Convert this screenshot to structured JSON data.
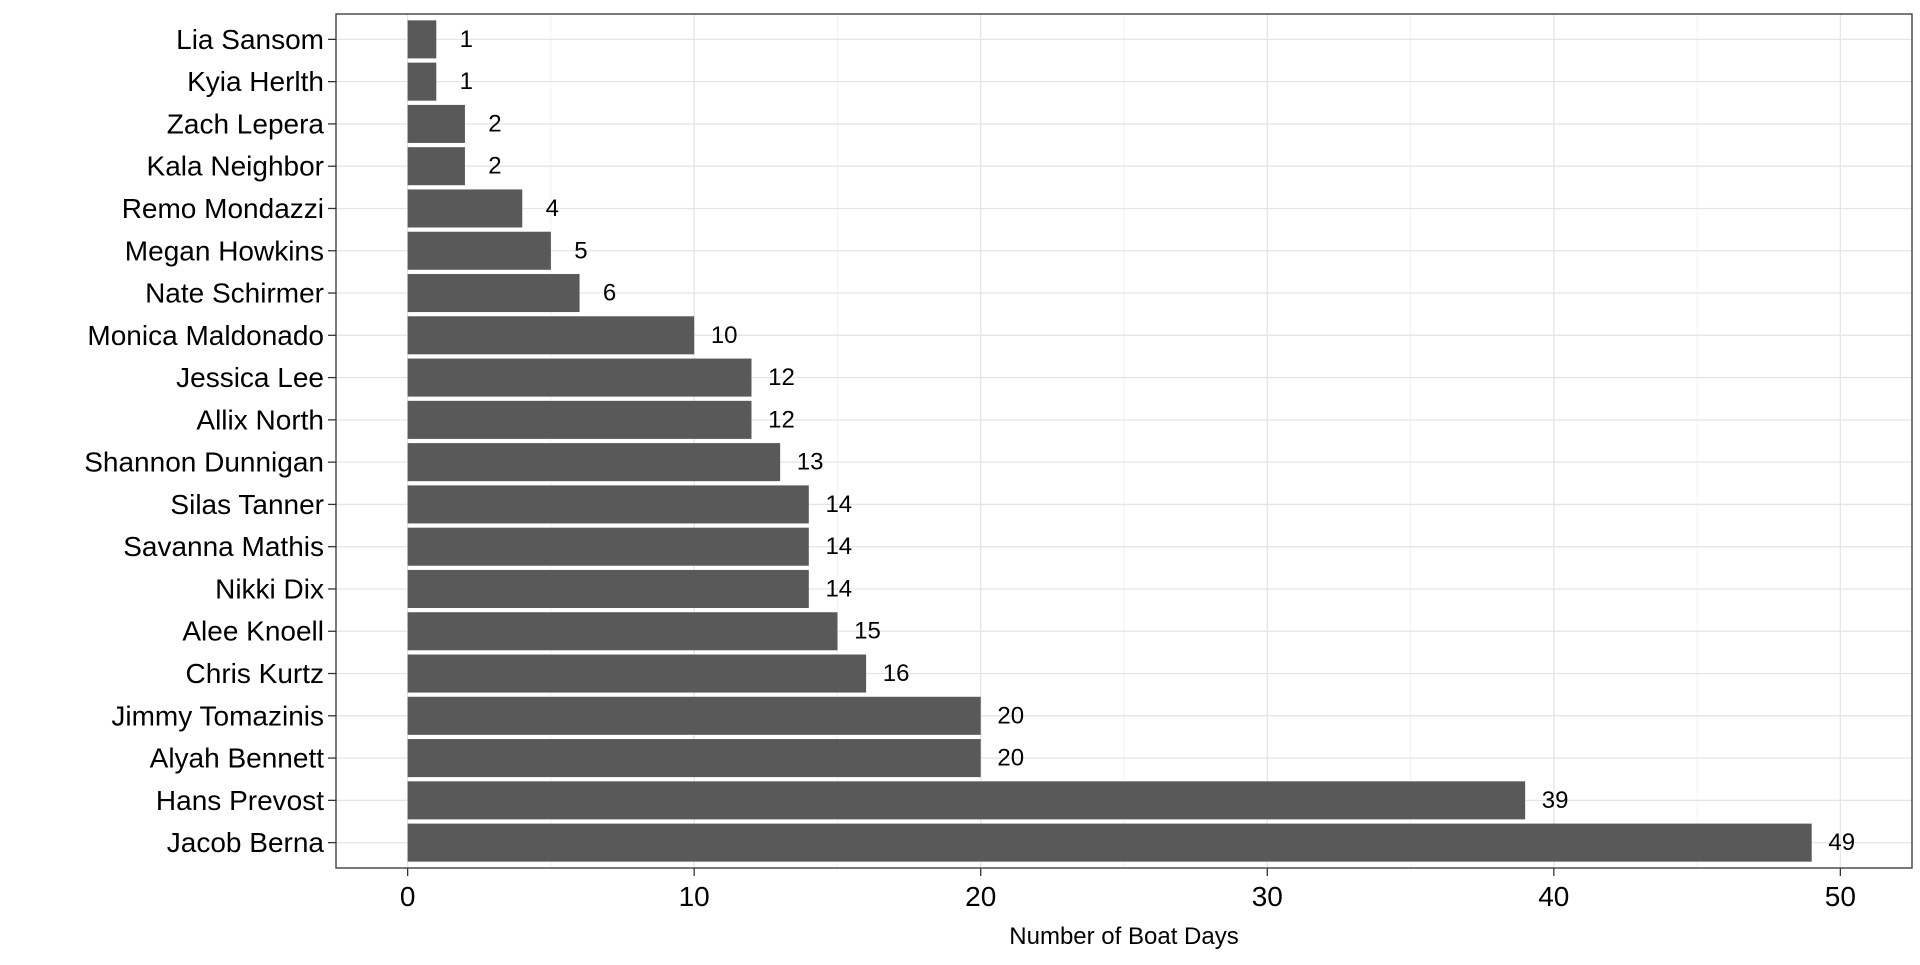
{
  "chart_data": {
    "type": "bar",
    "orientation": "horizontal",
    "title": "",
    "xlabel": "Number of Boat Days",
    "ylabel": "",
    "xlim": [
      -2.5,
      52.5
    ],
    "x_ticks": [
      0,
      10,
      20,
      30,
      40,
      50
    ],
    "grid": true,
    "bar_color": "#595959",
    "categories": [
      "Lia Sansom",
      "Kyia Herlth",
      "Zach Lepera",
      "Kala Neighbor",
      "Remo Mondazzi",
      "Megan Howkins",
      "Nate Schirmer",
      "Monica Maldonado",
      "Jessica Lee",
      "Allix North",
      "Shannon Dunnigan",
      "Silas Tanner",
      "Savanna Mathis",
      "Nikki Dix",
      "Alee Knoell",
      "Chris Kurtz",
      "Jimmy Tomazinis",
      "Alyah Bennett",
      "Hans Prevost",
      "Jacob Berna"
    ],
    "values": [
      1,
      1,
      2,
      2,
      4,
      5,
      6,
      10,
      12,
      12,
      13,
      14,
      14,
      14,
      15,
      16,
      20,
      20,
      39,
      49
    ]
  }
}
